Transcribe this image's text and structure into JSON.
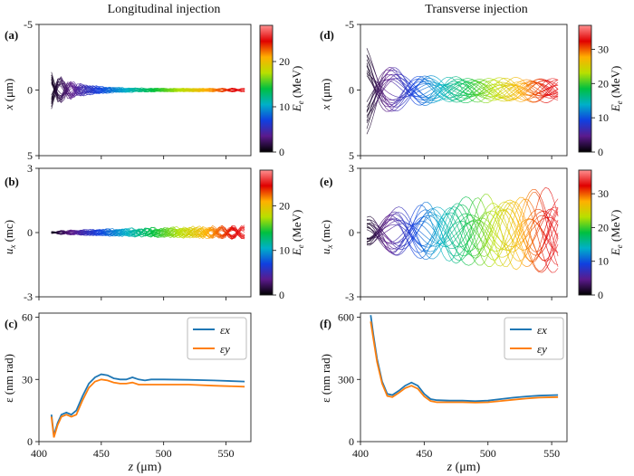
{
  "column_titles": [
    "Longitudinal injection",
    "Transverse injection"
  ],
  "colormap": [
    "#000000",
    "#5b1a8c",
    "#1040e0",
    "#00b0c8",
    "#00c040",
    "#b8e000",
    "#ffb000",
    "#e00000",
    "#ff9090"
  ],
  "chart_data": [
    {
      "id": "a",
      "panel_label": "(a)",
      "type": "line",
      "description_series": "electron trajectories colored by energy",
      "xlim": [
        400,
        570
      ],
      "ylim": [
        5,
        -5
      ],
      "y_ticks": [
        -5,
        0,
        5
      ],
      "x_ticks": [
        400,
        450,
        500,
        550
      ],
      "ylabel": "x (μm)",
      "xlabel": "",
      "colorbar": {
        "label": "Ee (MeV)",
        "ticks": [
          0,
          10,
          20
        ],
        "range": [
          0,
          28
        ]
      },
      "envelope": {
        "z_start": 410,
        "z_end": 565,
        "amp_start": 1.5,
        "amp_mid": 0.15,
        "oscillations": 9
      }
    },
    {
      "id": "b",
      "panel_label": "(b)",
      "type": "line",
      "xlim": [
        400,
        570
      ],
      "ylim": [
        -3,
        3
      ],
      "y_ticks": [
        -3,
        0,
        3
      ],
      "x_ticks": [
        400,
        450,
        500,
        550
      ],
      "ylabel": "ux (mc)",
      "xlabel": "",
      "colorbar": {
        "label": "Ee (MeV)",
        "ticks": [
          0,
          10,
          20
        ],
        "range": [
          0,
          28
        ]
      },
      "envelope": {
        "z_start": 410,
        "z_end": 565,
        "amp_start": 0.05,
        "amp_end": 0.35,
        "oscillations": 9
      }
    },
    {
      "id": "c",
      "panel_label": "(c)",
      "type": "line",
      "xlim": [
        400,
        570
      ],
      "ylim": [
        0,
        62
      ],
      "x_ticks": [
        400,
        450,
        500,
        550
      ],
      "y_ticks": [
        0,
        30,
        60
      ],
      "xlabel": "z (μm)",
      "ylabel": "ε (nm rad)",
      "legend": "top-right",
      "series": [
        {
          "name": "εx",
          "color": "#1f77b4",
          "x": [
            410,
            412,
            415,
            418,
            422,
            426,
            430,
            435,
            440,
            445,
            450,
            455,
            460,
            465,
            470,
            475,
            480,
            485,
            490,
            500,
            520,
            540,
            565
          ],
          "y": [
            13,
            3,
            9,
            13,
            14,
            13,
            15,
            22,
            28,
            31,
            32.5,
            32,
            30.5,
            30,
            30,
            31,
            30,
            29.5,
            30,
            30,
            29.8,
            29.5,
            29
          ]
        },
        {
          "name": "εy",
          "color": "#ff7f0e",
          "x": [
            410,
            412,
            415,
            418,
            422,
            426,
            430,
            435,
            440,
            445,
            450,
            455,
            460,
            465,
            470,
            475,
            480,
            485,
            490,
            500,
            520,
            540,
            565
          ],
          "y": [
            12,
            2,
            8,
            12,
            13,
            12,
            13,
            20,
            26,
            29,
            30,
            29.5,
            28.5,
            28,
            28,
            28.5,
            27.5,
            27.5,
            27.5,
            27.5,
            27.5,
            27,
            26.5
          ]
        }
      ]
    },
    {
      "id": "d",
      "panel_label": "(d)",
      "type": "line",
      "xlim": [
        400,
        562
      ],
      "ylim": [
        5,
        -5
      ],
      "y_ticks": [
        -5,
        0,
        5
      ],
      "x_ticks": [
        400,
        450,
        500,
        550
      ],
      "ylabel": "x (μm)",
      "xlabel": "",
      "colorbar": {
        "label": "Ee (MeV)",
        "ticks": [
          0,
          10,
          20,
          30
        ],
        "range": [
          0,
          37
        ]
      },
      "envelope": {
        "z_start": 405,
        "z_end": 555,
        "amp_start": 3.5,
        "amp_mid": 1.0,
        "oscillations": 3
      }
    },
    {
      "id": "e",
      "panel_label": "(e)",
      "type": "line",
      "xlim": [
        400,
        562
      ],
      "ylim": [
        -3,
        3
      ],
      "y_ticks": [
        -3,
        0,
        3
      ],
      "x_ticks": [
        400,
        450,
        500,
        550
      ],
      "ylabel": "ux (mc)",
      "xlabel": "",
      "colorbar": {
        "label": "Ee (MeV)",
        "ticks": [
          0,
          10,
          20,
          30
        ],
        "range": [
          0,
          37
        ]
      },
      "envelope": {
        "z_start": 405,
        "z_end": 555,
        "amp_start": 0.7,
        "amp_end": 2.1,
        "oscillations": 3
      }
    },
    {
      "id": "f",
      "panel_label": "(f)",
      "type": "line",
      "xlim": [
        400,
        562
      ],
      "ylim": [
        0,
        620
      ],
      "x_ticks": [
        400,
        450,
        500,
        550
      ],
      "y_ticks": [
        0,
        300,
        600
      ],
      "xlabel": "z (μm)",
      "ylabel": "ε (nm rad)",
      "legend": "top-right",
      "series": [
        {
          "name": "εx",
          "color": "#1f77b4",
          "x": [
            408,
            410,
            413,
            417,
            421,
            425,
            430,
            435,
            440,
            445,
            450,
            455,
            460,
            470,
            480,
            490,
            500,
            510,
            520,
            530,
            540,
            555
          ],
          "y": [
            610,
            520,
            400,
            290,
            230,
            225,
            245,
            270,
            285,
            270,
            230,
            205,
            200,
            198,
            198,
            195,
            198,
            205,
            212,
            218,
            222,
            225
          ]
        },
        {
          "name": "εy",
          "color": "#ff7f0e",
          "x": [
            408,
            410,
            413,
            417,
            421,
            425,
            430,
            435,
            440,
            445,
            450,
            455,
            460,
            470,
            480,
            490,
            500,
            510,
            520,
            530,
            540,
            555
          ],
          "y": [
            580,
            500,
            385,
            280,
            220,
            215,
            235,
            258,
            270,
            255,
            218,
            196,
            190,
            190,
            190,
            188,
            190,
            196,
            202,
            208,
            212,
            215
          ]
        }
      ]
    }
  ]
}
